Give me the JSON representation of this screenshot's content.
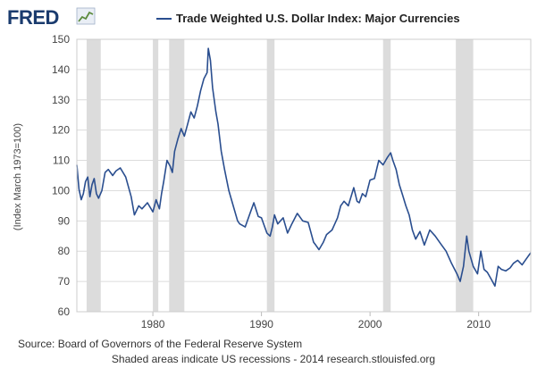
{
  "logo": {
    "text": "FRED",
    "graph_icon": "line-graph-icon"
  },
  "colors": {
    "series": "#2a4e8f",
    "recession": "#dcdcdc",
    "grid": "#dcdcdc",
    "axis": "#bbbbbb"
  },
  "footer": {
    "source": "Source: Board of Governors of the Federal Reserve System",
    "note": "Shaded areas indicate US recessions - 2014 research.stlouisfed.org"
  },
  "chart_data": {
    "type": "line",
    "title": "",
    "xlabel": "",
    "ylabel": "(Index March 1973=100)",
    "xlim": [
      1973.0,
      2014.8
    ],
    "ylim": [
      60,
      150
    ],
    "grid": true,
    "legend_position": "top",
    "x_ticks": [
      1980,
      1990,
      2000,
      2010
    ],
    "y_ticks": [
      60,
      70,
      80,
      90,
      100,
      110,
      120,
      130,
      140,
      150
    ],
    "recessions": [
      {
        "start": 1973.9,
        "end": 1975.2
      },
      {
        "start": 1980.0,
        "end": 1980.5
      },
      {
        "start": 1981.5,
        "end": 1982.9
      },
      {
        "start": 1990.5,
        "end": 1991.2
      },
      {
        "start": 2001.2,
        "end": 2001.9
      },
      {
        "start": 2007.9,
        "end": 2009.5
      }
    ],
    "series": [
      {
        "name": "Trade Weighted U.S. Dollar Index: Major Currencies",
        "x": [
          1973.0,
          1973.2,
          1973.4,
          1973.6,
          1973.8,
          1974.0,
          1974.2,
          1974.4,
          1974.6,
          1974.8,
          1975.0,
          1975.3,
          1975.6,
          1975.9,
          1976.3,
          1976.6,
          1977.0,
          1977.5,
          1978.0,
          1978.3,
          1978.7,
          1979.0,
          1979.5,
          1980.0,
          1980.3,
          1980.6,
          1980.8,
          1981.0,
          1981.3,
          1981.6,
          1981.8,
          1982.0,
          1982.3,
          1982.6,
          1982.9,
          1983.2,
          1983.5,
          1983.8,
          1984.1,
          1984.4,
          1984.7,
          1985.0,
          1985.1,
          1985.3,
          1985.5,
          1985.8,
          1986.0,
          1986.3,
          1986.6,
          1987.0,
          1987.4,
          1987.8,
          1988.0,
          1988.5,
          1989.0,
          1989.3,
          1989.7,
          1990.0,
          1990.5,
          1990.8,
          1991.0,
          1991.2,
          1991.5,
          1992.0,
          1992.4,
          1992.8,
          1993.3,
          1993.8,
          1994.3,
          1994.8,
          1995.0,
          1995.3,
          1995.7,
          1996.0,
          1996.5,
          1997.0,
          1997.3,
          1997.6,
          1998.0,
          1998.5,
          1998.8,
          1999.0,
          1999.3,
          1999.6,
          2000.0,
          2000.4,
          2000.8,
          2001.2,
          2001.6,
          2001.9,
          2002.1,
          2002.4,
          2002.7,
          2003.0,
          2003.3,
          2003.6,
          2003.9,
          2004.2,
          2004.6,
          2005.0,
          2005.5,
          2006.0,
          2006.5,
          2007.0,
          2007.5,
          2008.0,
          2008.3,
          2008.6,
          2008.9,
          2009.1,
          2009.5,
          2009.9,
          2010.2,
          2010.5,
          2010.8,
          2011.2,
          2011.5,
          2011.8,
          2012.1,
          2012.5,
          2012.9,
          2013.2,
          2013.6,
          2014.0,
          2014.4,
          2014.8
        ],
        "y": [
          108.5,
          100.5,
          97.0,
          99.0,
          103.0,
          104.5,
          98.0,
          102.0,
          104.0,
          99.0,
          97.5,
          100.0,
          106.0,
          107.0,
          105.0,
          106.5,
          107.5,
          104.5,
          98.0,
          92.0,
          95.0,
          94.0,
          96.0,
          93.0,
          97.0,
          94.0,
          99.0,
          103.0,
          110.0,
          108.0,
          106.0,
          113.0,
          117.0,
          120.5,
          118.0,
          122.0,
          126.0,
          124.0,
          128.0,
          133.0,
          137.0,
          139.0,
          147.0,
          143.0,
          134.0,
          126.0,
          122.0,
          113.0,
          107.0,
          100.0,
          95.0,
          90.0,
          89.0,
          88.0,
          93.0,
          96.0,
          91.5,
          91.0,
          86.0,
          85.0,
          88.0,
          92.0,
          89.0,
          91.0,
          86.0,
          89.0,
          92.5,
          90.0,
          89.5,
          83.0,
          82.0,
          80.5,
          83.0,
          85.5,
          87.0,
          91.0,
          95.0,
          96.5,
          95.0,
          101.0,
          96.5,
          96.0,
          99.0,
          98.0,
          103.5,
          104.0,
          110.0,
          108.5,
          111.0,
          112.5,
          110.0,
          107.0,
          102.0,
          98.5,
          95.0,
          92.0,
          87.0,
          84.0,
          86.5,
          82.0,
          87.0,
          85.0,
          82.5,
          80.0,
          76.0,
          72.5,
          70.0,
          75.0,
          85.0,
          80.0,
          75.0,
          72.5,
          80.0,
          74.0,
          73.0,
          70.5,
          68.5,
          75.0,
          74.0,
          73.5,
          74.5,
          76.0,
          77.0,
          75.5,
          77.5,
          79.5
        ]
      }
    ]
  }
}
